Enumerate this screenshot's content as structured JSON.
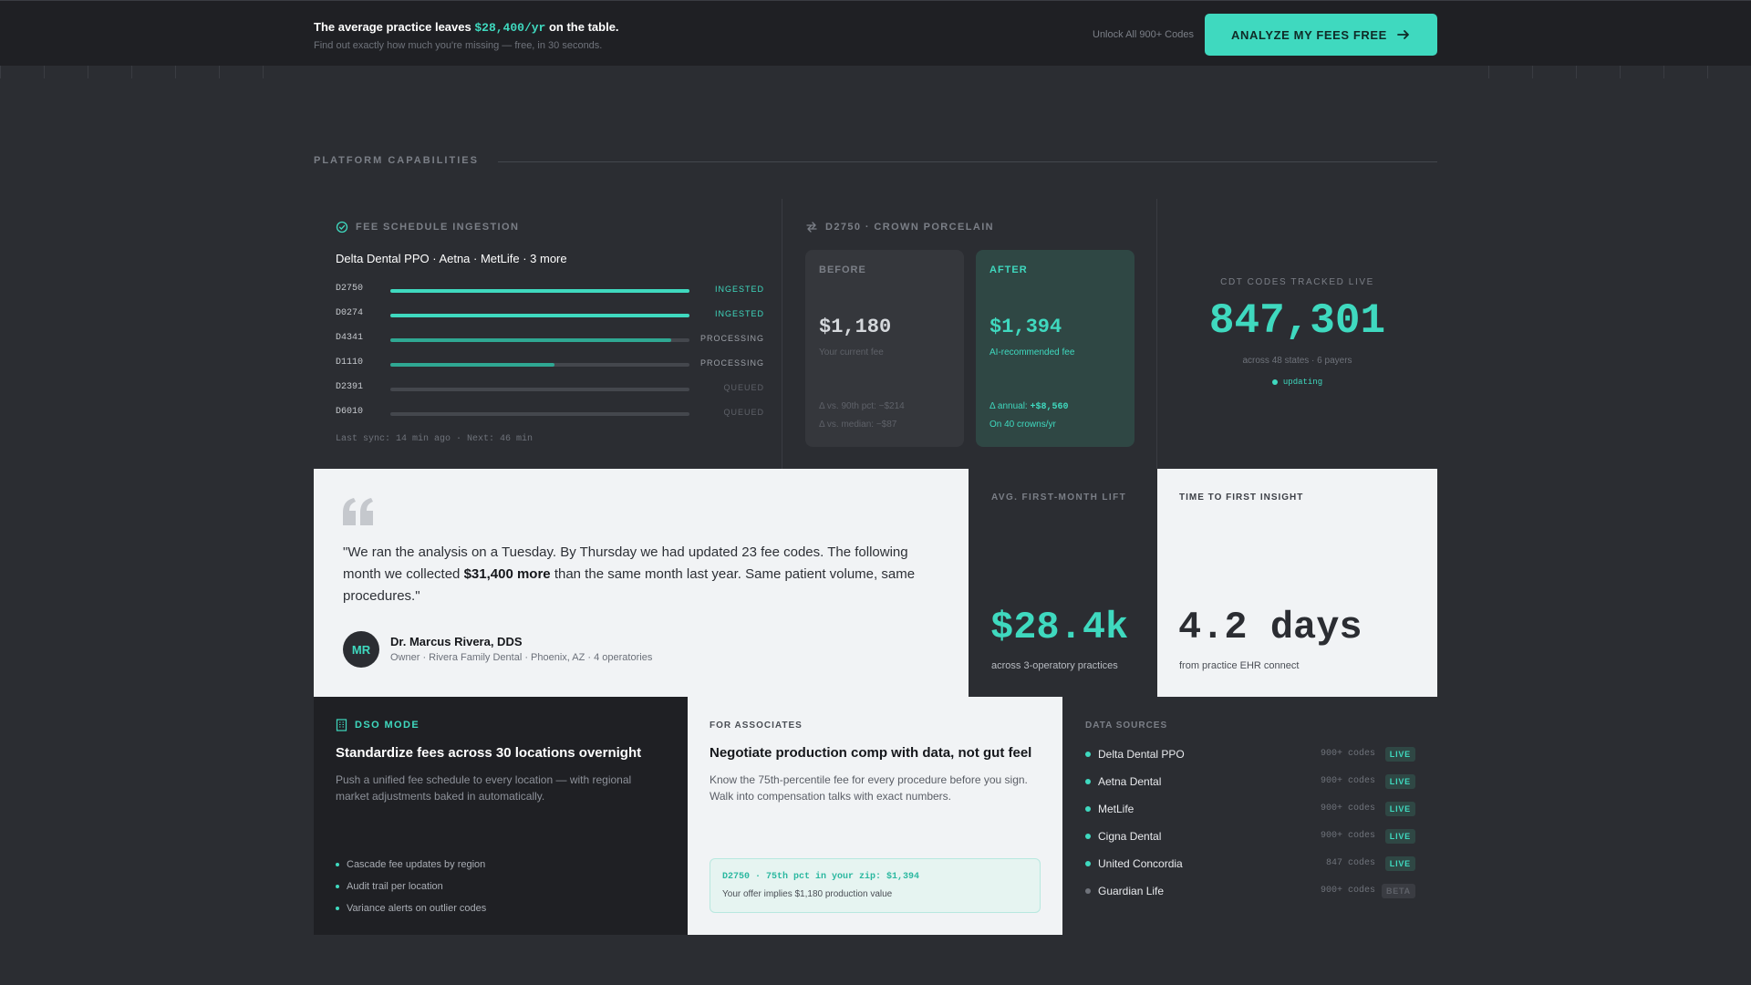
{
  "banner": {
    "title_prefix": "The average practice leaves ",
    "title_amount": "$28,400/yr",
    "title_suffix": " on the table.",
    "subtitle": "Find out exactly how much you're missing — free, in 30 seconds.",
    "unlock_text": "Unlock All 900+ Codes",
    "cta_label": "ANALYZE MY FEES FREE",
    "cta_icon": "arrow-right-icon"
  },
  "section": {
    "label": "PLATFORM CAPABILITIES"
  },
  "ingestion": {
    "title": "FEE SCHEDULE INGESTION",
    "icon": "check-circle-icon",
    "payers": "Delta Dental PPO · Aetna · MetLife · 3 more",
    "rows": [
      {
        "code": "D2750",
        "progress": 1.0,
        "status": "INGESTED"
      },
      {
        "code": "D0274",
        "progress": 1.0,
        "status": "INGESTED"
      },
      {
        "code": "D4341",
        "progress": 0.94,
        "status": "PROCESSING"
      },
      {
        "code": "D1110",
        "progress": 0.55,
        "status": "PROCESSING"
      },
      {
        "code": "D2391",
        "progress": 0,
        "status": "QUEUED"
      },
      {
        "code": "D6010",
        "progress": 0,
        "status": "QUEUED"
      }
    ],
    "sync": "Last sync: 14 min ago · Next: 46 min",
    "colors": {
      "ingested": "#3fd9bf",
      "processing": "#2fa893",
      "queued_text": "#5e6168",
      "processing_text": "#9ca0a7"
    }
  },
  "crown": {
    "title": "D2750 · CROWN PORCELAIN",
    "icon": "swap-arrows-icon",
    "before": {
      "label": "BEFORE",
      "price": "$1,180",
      "sub": "Your current fee",
      "line1": "Δ vs. 90th pct: −$214",
      "line2": "Δ vs. median: −$87"
    },
    "after": {
      "label": "AFTER",
      "price": "$1,394",
      "sub": "AI-recommended fee",
      "line1_prefix": "Δ annual: ",
      "line1_value": "+$8,560",
      "line2": "On 40 crowns/yr"
    }
  },
  "cdt": {
    "label": "CDT CODES TRACKED LIVE",
    "value": "847,301",
    "sub": "across 48 states · 6 payers",
    "status": "updating"
  },
  "quote": {
    "icon": "quote-icon",
    "text_before": "\"We ran the analysis on a Tuesday. By Thursday we had updated 23 fee codes. The following month we collected ",
    "text_bold": "$31,400 more",
    "text_after": " than the same month last year. Same patient volume, same procedures.\"",
    "initials": "MR",
    "name": "Dr. Marcus Rivera, DDS",
    "role": "Owner · Rivera Family Dental · Phoenix, AZ · 4 operatories"
  },
  "lift": {
    "label": "AVG. FIRST-MONTH LIFT",
    "value": "$28.4k",
    "sub": "across 3-operatory practices"
  },
  "insight": {
    "label": "TIME TO FIRST INSIGHT",
    "value": "4.2 days",
    "sub": "from practice EHR connect"
  },
  "dso": {
    "label": "DSO MODE",
    "icon": "building-icon",
    "title": "Standardize fees across 30 locations overnight",
    "desc": "Push a unified fee schedule to every location — with regional market adjustments baked in automatically.",
    "bullets": [
      "Cascade fee updates by region",
      "Audit trail per location",
      "Variance alerts on outlier codes"
    ]
  },
  "associates": {
    "label": "FOR ASSOCIATES",
    "title": "Negotiate production comp with data, not gut feel",
    "desc": "Know the 75th-percentile fee for every procedure before you sign. Walk into compensation talks with exact numbers.",
    "box_line1": "D2750 · 75th pct in your zip: $1,394",
    "box_line2": "Your offer implies $1,180 production value"
  },
  "sources": {
    "label": "DATA SOURCES",
    "items": [
      {
        "name": "Delta Dental PPO",
        "count": "900+ codes",
        "badge": "LIVE"
      },
      {
        "name": "Aetna Dental",
        "count": "900+ codes",
        "badge": "LIVE"
      },
      {
        "name": "MetLife",
        "count": "900+ codes",
        "badge": "LIVE"
      },
      {
        "name": "Cigna Dental",
        "count": "900+ codes",
        "badge": "LIVE"
      },
      {
        "name": "United Concordia",
        "count": "847 codes",
        "badge": "LIVE"
      },
      {
        "name": "Guardian Life",
        "count": "900+ codes",
        "badge": "BETA"
      }
    ]
  }
}
